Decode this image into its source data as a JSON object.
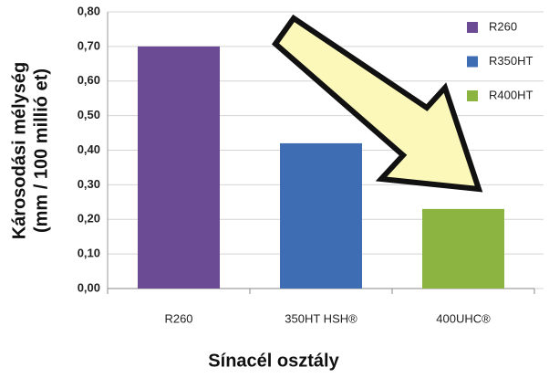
{
  "chart_data": {
    "type": "bar",
    "categories": [
      "R260",
      "350HT HSH®",
      "400UHC®"
    ],
    "series": [
      {
        "name": "R260",
        "color": "#6b4c94",
        "values": [
          0.7,
          null,
          null
        ]
      },
      {
        "name": "R350HT",
        "color": "#3e6db4",
        "values": [
          null,
          0.42,
          null
        ]
      },
      {
        "name": "R400HT",
        "color": "#8cb440",
        "values": [
          null,
          null,
          0.23
        ]
      }
    ],
    "ylim": [
      0,
      0.8
    ],
    "yticks": [
      {
        "value": 0,
        "label": "0,00"
      },
      {
        "value": 0.1,
        "label": "0,10"
      },
      {
        "value": 0.2,
        "label": "0,20"
      },
      {
        "value": 0.3,
        "label": "0,30"
      },
      {
        "value": 0.4,
        "label": "0,40"
      },
      {
        "value": 0.5,
        "label": "0,50"
      },
      {
        "value": 0.6,
        "label": "0,60"
      },
      {
        "value": 0.7,
        "label": "0,70"
      },
      {
        "value": 0.8,
        "label": "0,80"
      }
    ],
    "ylabel": [
      "Károsodási mélység",
      "(mm / 100 millió et)"
    ],
    "xlabel": "Sínacél osztály",
    "grid": true
  }
}
